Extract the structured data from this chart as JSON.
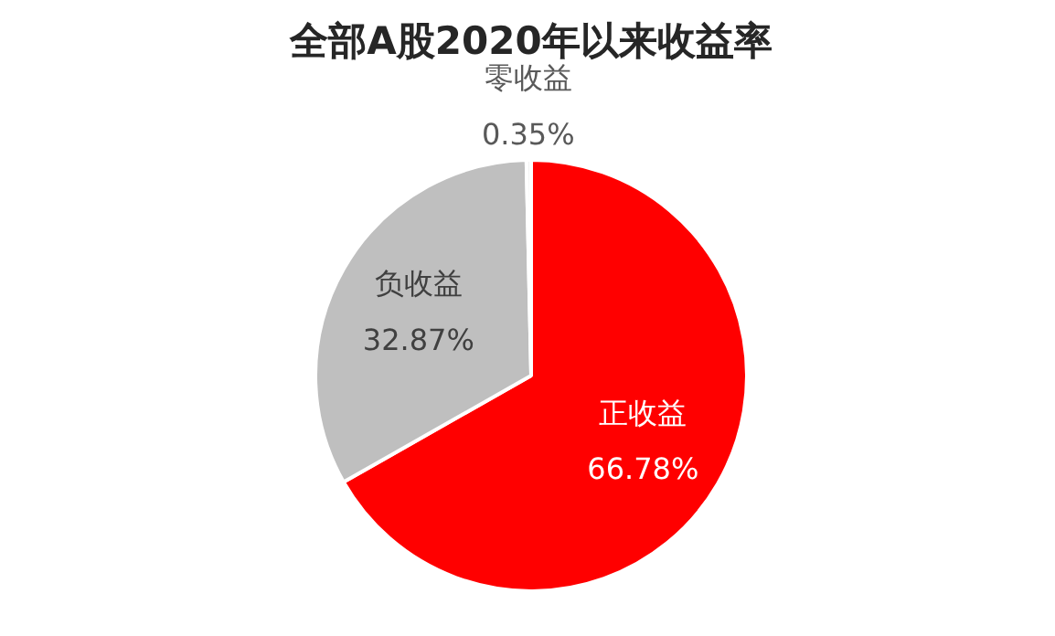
{
  "chart_data": {
    "type": "pie",
    "title": "全部A股2020年以来收益率",
    "categories": [
      "正收益",
      "负收益",
      "零收益"
    ],
    "values": [
      66.78,
      32.87,
      0.35
    ],
    "colors": [
      "#ff0000",
      "#bfbfbf",
      "#f2f2f2"
    ],
    "value_labels": [
      "66.78%",
      "32.87%",
      "0.35%"
    ],
    "legend": false
  }
}
